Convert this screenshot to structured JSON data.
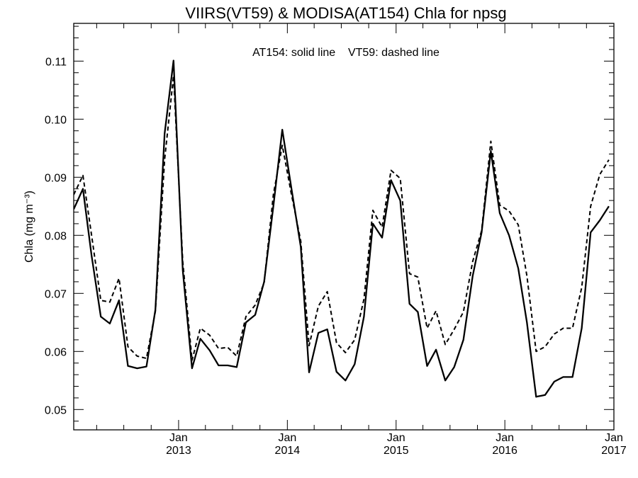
{
  "chart_data": {
    "type": "line",
    "title": "VIIRS(VT59) & MODISA(AT154)  Chla for npsg",
    "annotation": "AT154: solid line    VT59: dashed line",
    "ylabel": "Chla (mg m⁻³)",
    "xlabel": "",
    "ylim": [
      0.0465,
      0.1165
    ],
    "xlim": [
      "2012-01-15",
      "2017-01-01"
    ],
    "y_ticks": [
      0.05,
      0.06,
      0.07,
      0.08,
      0.09,
      0.1,
      0.11
    ],
    "y_tick_labels": [
      "0.05",
      "0.06",
      "0.07",
      "0.08",
      "0.09",
      "0.10",
      "0.11"
    ],
    "x_ticks": [
      {
        "date": "2013-01-01",
        "month": "Jan",
        "year": "2013"
      },
      {
        "date": "2014-01-01",
        "month": "Jan",
        "year": "2014"
      },
      {
        "date": "2015-01-01",
        "month": "Jan",
        "year": "2015"
      },
      {
        "date": "2016-01-01",
        "month": "Jan",
        "year": "2016"
      },
      {
        "date": "2017-01-01",
        "month": "Jan",
        "year": "2017"
      }
    ],
    "x": [
      "2012-01-15",
      "2012-02-15",
      "2012-03-15",
      "2012-04-15",
      "2012-05-15",
      "2012-06-15",
      "2012-07-15",
      "2012-08-15",
      "2012-09-15",
      "2012-10-15",
      "2012-11-15",
      "2012-12-15",
      "2013-01-15",
      "2013-02-15",
      "2013-03-15",
      "2013-04-15",
      "2013-05-15",
      "2013-06-15",
      "2013-07-15",
      "2013-08-15",
      "2013-09-15",
      "2013-10-15",
      "2013-11-15",
      "2013-12-15",
      "2014-01-15",
      "2014-02-15",
      "2014-03-15",
      "2014-04-15",
      "2014-05-15",
      "2014-06-15",
      "2014-07-15",
      "2014-08-15",
      "2014-09-15",
      "2014-10-15",
      "2014-11-15",
      "2014-12-15",
      "2015-01-15",
      "2015-02-15",
      "2015-03-15",
      "2015-04-15",
      "2015-05-15",
      "2015-06-15",
      "2015-07-15",
      "2015-08-15",
      "2015-09-15",
      "2015-10-15",
      "2015-11-15",
      "2015-12-15",
      "2016-01-15",
      "2016-02-15",
      "2016-03-15",
      "2016-04-15",
      "2016-05-15",
      "2016-06-15",
      "2016-07-15",
      "2016-08-15",
      "2016-09-15",
      "2016-10-15",
      "2016-11-15",
      "2016-12-15"
    ],
    "series": [
      {
        "name": "AT154",
        "style": "solid",
        "values": [
          0.0845,
          0.088,
          0.0765,
          0.066,
          0.0648,
          0.0688,
          0.0575,
          0.0571,
          0.0574,
          0.0672,
          0.0975,
          0.1101,
          0.074,
          0.0571,
          0.0622,
          0.0602,
          0.0576,
          0.0576,
          0.0573,
          0.065,
          0.0663,
          0.072,
          0.085,
          0.0982,
          0.088,
          0.078,
          0.0564,
          0.0632,
          0.0638,
          0.0565,
          0.055,
          0.0578,
          0.066,
          0.082,
          0.0796,
          0.0895,
          0.086,
          0.0682,
          0.0668,
          0.0575,
          0.0603,
          0.055,
          0.0573,
          0.062,
          0.073,
          0.0805,
          0.0945,
          0.0838,
          0.08,
          0.0743,
          0.065,
          0.0522,
          0.0525,
          0.0548,
          0.0556,
          0.0556,
          0.064,
          0.0805,
          0.0826,
          0.085
        ]
      },
      {
        "name": "VT59",
        "style": "dashed",
        "values": [
          0.087,
          0.0903,
          0.08,
          0.0688,
          0.0685,
          0.0726,
          0.0608,
          0.0592,
          0.0588,
          0.0669,
          0.093,
          0.1075,
          0.0755,
          0.0585,
          0.064,
          0.0628,
          0.0605,
          0.0607,
          0.0592,
          0.066,
          0.068,
          0.0718,
          0.087,
          0.0955,
          0.087,
          0.079,
          0.061,
          0.0678,
          0.0703,
          0.0615,
          0.0598,
          0.062,
          0.069,
          0.0843,
          0.0814,
          0.0912,
          0.0898,
          0.0734,
          0.0728,
          0.064,
          0.067,
          0.0612,
          0.0638,
          0.0668,
          0.0755,
          0.0808,
          0.0962,
          0.0852,
          0.0842,
          0.0818,
          0.073,
          0.06,
          0.0608,
          0.063,
          0.064,
          0.064,
          0.071,
          0.085,
          0.0905,
          0.093
        ]
      }
    ],
    "grid": false,
    "legend": "none"
  }
}
